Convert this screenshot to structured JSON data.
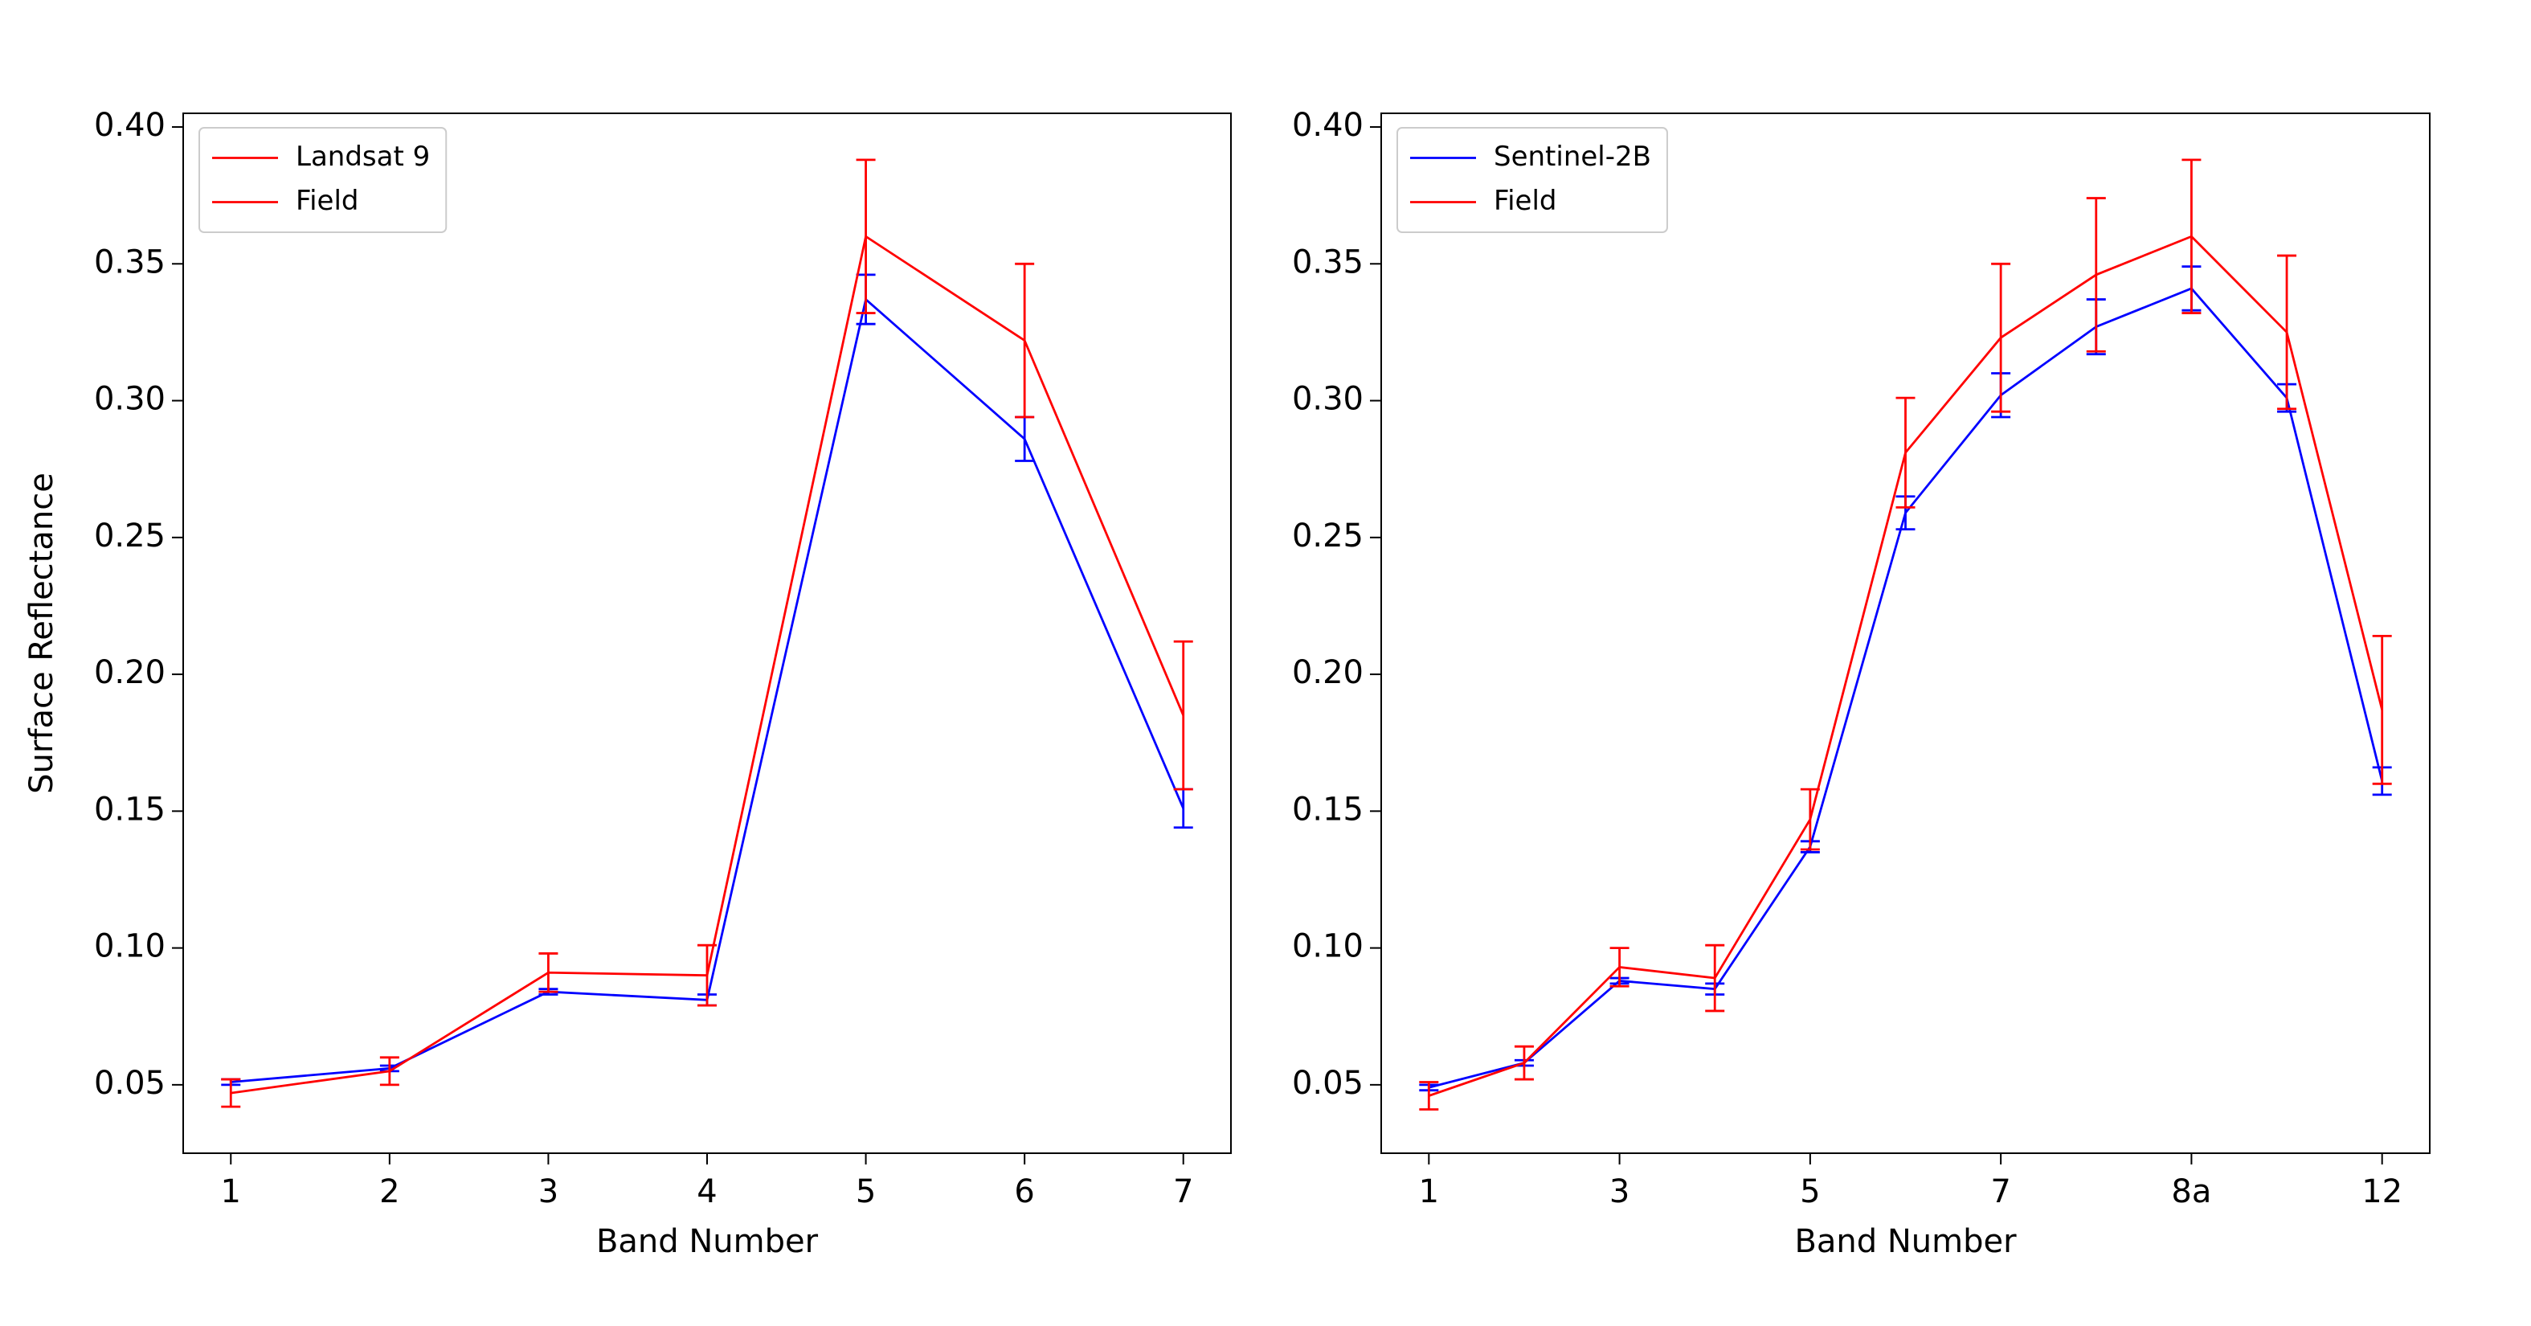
{
  "chart_data": [
    {
      "type": "line",
      "x_label": "Band Number",
      "y_label": "Surface Reflectance",
      "legend": "upper left",
      "categories": [
        "1",
        "2",
        "3",
        "4",
        "5",
        "6",
        "7"
      ],
      "series": [
        {
          "name": "Landsat 9",
          "color": "#0000ff",
          "legend_color": "#ff0000",
          "values": [
            0.051,
            0.056,
            0.084,
            0.081,
            0.337,
            0.286,
            0.151
          ],
          "errors": [
            0.001,
            0.001,
            0.001,
            0.002,
            0.009,
            0.008,
            0.007
          ]
        },
        {
          "name": "Field",
          "color": "#ff0000",
          "values": [
            0.047,
            0.055,
            0.091,
            0.09,
            0.36,
            0.322,
            0.185
          ],
          "errors": [
            0.005,
            0.005,
            0.007,
            0.011,
            0.028,
            0.028,
            0.027
          ]
        }
      ],
      "ylim": [
        0.025,
        0.405
      ],
      "yticks": [
        0.05,
        {
          "value": 0.1,
          "label": "0.10"
        },
        0.15,
        {
          "value": 0.2,
          "label": "0.20"
        },
        0.25,
        {
          "value": 0.3,
          "label": "0.30"
        },
        0.35,
        {
          "value": 0.4,
          "label": "0.40"
        }
      ]
    },
    {
      "type": "line",
      "x_label": "Band Number",
      "legend": "upper left",
      "categories": [
        "1",
        null,
        "3",
        null,
        "5",
        null,
        "7",
        null,
        "8a",
        null,
        "12"
      ],
      "series": [
        {
          "name": "Sentinel-2B",
          "color": "#0000ff",
          "values": [
            0.049,
            0.058,
            0.088,
            0.085,
            0.137,
            0.259,
            0.302,
            0.327,
            0.341,
            0.301,
            0.161
          ],
          "errors": [
            0.001,
            0.001,
            0.001,
            0.002,
            0.002,
            0.006,
            0.008,
            0.01,
            0.008,
            0.005,
            0.005
          ]
        },
        {
          "name": "Field",
          "color": "#ff0000",
          "values": [
            0.046,
            0.058,
            0.093,
            0.089,
            0.147,
            0.281,
            0.323,
            0.346,
            0.36,
            0.325,
            0.187
          ],
          "errors": [
            0.005,
            0.006,
            0.007,
            0.012,
            0.011,
            0.02,
            0.027,
            0.028,
            0.028,
            0.028,
            0.027
          ]
        }
      ],
      "ylim": [
        0.025,
        0.405
      ],
      "yticks": [
        0.05,
        {
          "value": 0.1,
          "label": "0.10"
        },
        0.15,
        {
          "value": 0.2,
          "label": "0.20"
        },
        0.25,
        {
          "value": 0.3,
          "label": "0.30"
        },
        0.35,
        {
          "value": 0.4,
          "label": "0.40"
        }
      ]
    }
  ]
}
